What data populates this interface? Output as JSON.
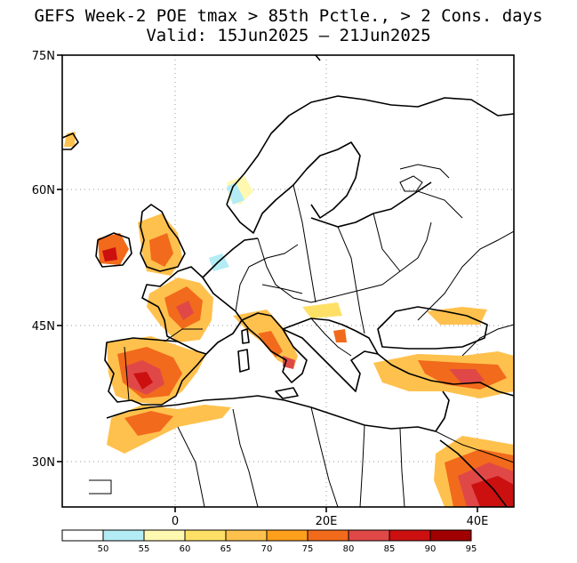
{
  "title": {
    "line1": "GEFS Week-2 POE tmax > 85th Pctle., > 2 Cons. days",
    "line2": "Valid: 15Jun2025 – 21Jun2025"
  },
  "axes": {
    "lat_labels": [
      "75N",
      "60N",
      "45N",
      "30N"
    ],
    "lon_labels": [
      "0",
      "20E",
      "40E"
    ]
  },
  "colorbar": {
    "labels": [
      "50",
      "55",
      "60",
      "65",
      "70",
      "75",
      "80",
      "85",
      "90",
      "95"
    ],
    "colors": [
      "#ffffff",
      "#b3ecf5",
      "#fff8b0",
      "#ffe066",
      "#ffc14d",
      "#ff9f1c",
      "#f26a1b",
      "#e04848",
      "#cc1010",
      "#a00000"
    ]
  }
}
